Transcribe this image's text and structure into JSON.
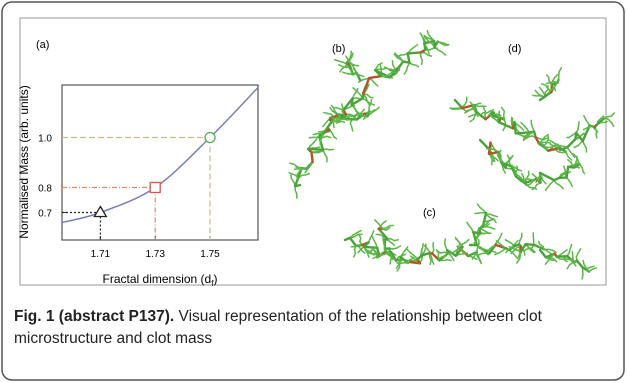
{
  "chart_data": {
    "type": "line",
    "panel_label": "(a)",
    "y_label": "Normalised Mass (arb. units)",
    "x_label": {
      "text": "Fractal dimension (d",
      "subscript": "f",
      "close": ")"
    },
    "xlim": [
      1.696,
      1.7675
    ],
    "ylim": [
      0.59,
      1.21
    ],
    "xticks": [
      1.71,
      1.73,
      1.75
    ],
    "yticks": [
      {
        "value": 0.7,
        "label": "0.7"
      },
      {
        "value": 0.8,
        "label": "0.8"
      },
      {
        "value": 1.0,
        "label": "1.0"
      }
    ],
    "series": [
      {
        "name": "curve",
        "color": "#7a7fb8",
        "x": [
          1.696,
          1.71,
          1.73,
          1.75,
          1.7675
        ],
        "values": [
          0.66,
          0.7,
          0.8,
          1.0,
          1.2
        ]
      },
      {
        "name": "points",
        "colors": [
          "#222222",
          "#d9534f",
          "#4caf50"
        ],
        "guide_colors": [
          "#222222",
          "#d98c6a",
          "#d9b28a"
        ],
        "x": [
          1.71,
          1.73,
          1.75
        ],
        "values": [
          0.7,
          0.8,
          1.0
        ]
      }
    ]
  },
  "panels": [
    "(b)",
    "(c)",
    "(d)"
  ],
  "caption": {
    "label": "Fig. 1 (abstract P137).",
    "text": "Visual representation of the relationship between clot microstructure and clot mass"
  }
}
